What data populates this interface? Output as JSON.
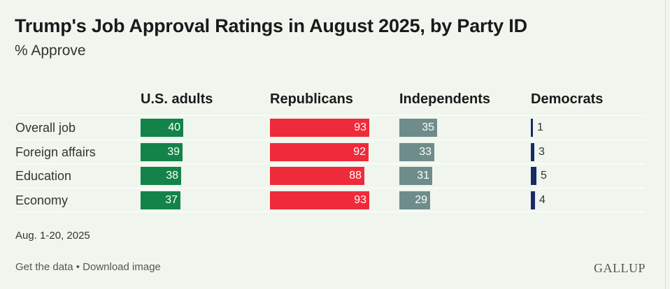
{
  "chart_data": {
    "type": "bar",
    "title": "Trump's Job Approval Ratings in August 2025, by Party ID",
    "subtitle": "% Approve",
    "categories": [
      "Overall job",
      "Foreign affairs",
      "Education",
      "Economy"
    ],
    "series": [
      {
        "name": "U.S. adults",
        "values": [
          40,
          39,
          38,
          37
        ],
        "color": "#13834a"
      },
      {
        "name": "Republicans",
        "values": [
          93,
          92,
          88,
          93
        ],
        "color": "#ef2a3a"
      },
      {
        "name": "Independents",
        "values": [
          35,
          33,
          31,
          29
        ],
        "color": "#6e8c8a"
      },
      {
        "name": "Democrats",
        "values": [
          1,
          3,
          5,
          4
        ],
        "color": "#1a2a66"
      }
    ],
    "xlim": [
      0,
      100
    ]
  },
  "footnote": "Aug. 1-20, 2025",
  "links": {
    "get_data": "Get the data",
    "separator": " • ",
    "download": "Download image"
  },
  "logo": "GALLUP"
}
